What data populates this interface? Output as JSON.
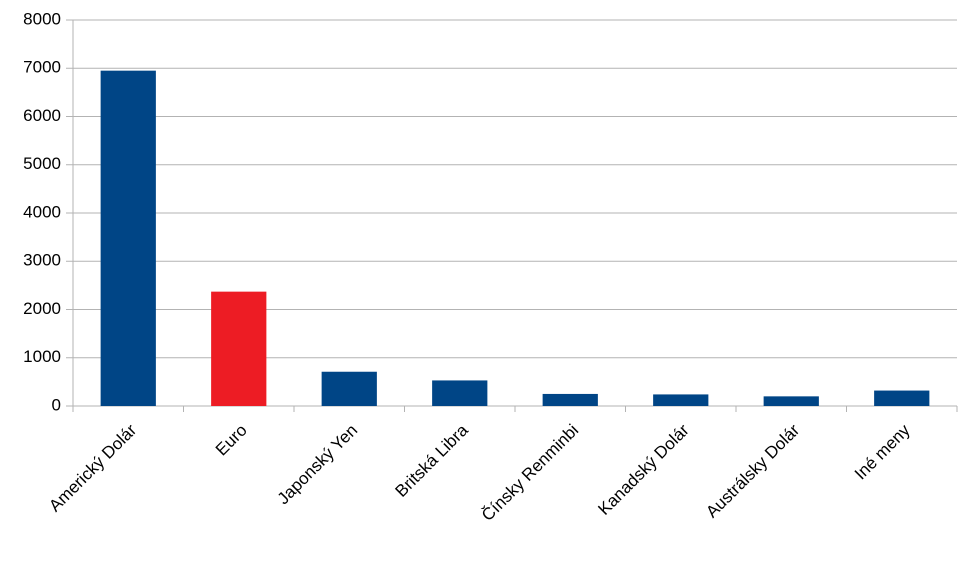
{
  "chart_data": {
    "type": "bar",
    "categories": [
      "Americký Dolár",
      "Euro",
      "Japonský Yen",
      "Britská Libra",
      "Čínsky Renminbi",
      "Kanadský Dolár",
      "Austrálsky Dolár",
      "Iné meny"
    ],
    "values": [
      6950,
      2370,
      710,
      530,
      250,
      240,
      200,
      320
    ],
    "colors": [
      "#004586",
      "#ed1c24",
      "#004586",
      "#004586",
      "#004586",
      "#004586",
      "#004586",
      "#004586"
    ],
    "ylim": [
      0,
      8000
    ],
    "yticks": [
      0,
      1000,
      2000,
      3000,
      4000,
      5000,
      6000,
      7000,
      8000
    ],
    "grid": true
  }
}
